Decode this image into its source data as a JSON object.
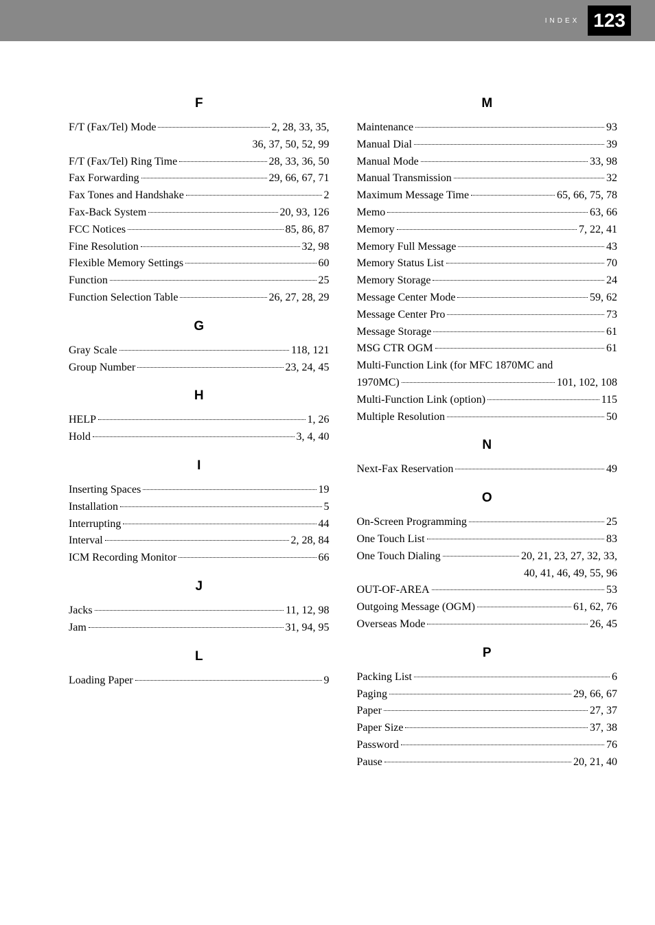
{
  "header": {
    "label": "INDEX",
    "page_number": "123"
  },
  "left_column": [
    {
      "heading": "F",
      "entries": [
        {
          "label": "F/T (Fax/Tel) Mode",
          "pages": "2, 28, 33, 35,",
          "continuation": "36, 37, 50, 52, 99"
        },
        {
          "label": "F/T (Fax/Tel) Ring Time",
          "pages": "28, 33, 36, 50"
        },
        {
          "label": "Fax Forwarding",
          "pages": "29, 66, 67, 71"
        },
        {
          "label": "Fax Tones and Handshake",
          "pages": "2"
        },
        {
          "label": "Fax-Back System",
          "pages": "20, 93, 126"
        },
        {
          "label": "FCC Notices",
          "pages": "85, 86, 87"
        },
        {
          "label": "Fine Resolution",
          "pages": "32, 98"
        },
        {
          "label": "Flexible Memory Settings",
          "pages": "60"
        },
        {
          "label": "Function",
          "pages": "25"
        },
        {
          "label": "Function Selection Table",
          "pages": "26, 27, 28, 29"
        }
      ]
    },
    {
      "heading": "G",
      "entries": [
        {
          "label": "Gray Scale",
          "pages": "118, 121"
        },
        {
          "label": "Group Number",
          "pages": "23, 24, 45"
        }
      ]
    },
    {
      "heading": "H",
      "entries": [
        {
          "label": "HELP",
          "pages": "1, 26"
        },
        {
          "label": "Hold",
          "pages": "3, 4, 40"
        }
      ]
    },
    {
      "heading": "I",
      "entries": [
        {
          "label": "Inserting Spaces",
          "pages": "19"
        },
        {
          "label": "Installation",
          "pages": "5"
        },
        {
          "label": "Interrupting",
          "pages": "44"
        },
        {
          "label": "Interval",
          "pages": "2, 28, 84"
        },
        {
          "label": "ICM Recording Monitor",
          "pages": "66"
        }
      ]
    },
    {
      "heading": "J",
      "entries": [
        {
          "label": "Jacks",
          "pages": "11, 12, 98"
        },
        {
          "label": "Jam",
          "pages": "31, 94, 95"
        }
      ]
    },
    {
      "heading": "L",
      "entries": [
        {
          "label": "Loading Paper",
          "pages": "9"
        }
      ]
    }
  ],
  "right_column": [
    {
      "heading": "M",
      "entries": [
        {
          "label": "Maintenance",
          "pages": "93"
        },
        {
          "label": "Manual Dial",
          "pages": "39"
        },
        {
          "label": "Manual Mode",
          "pages": "33, 98"
        },
        {
          "label": "Manual Transmission",
          "pages": "32"
        },
        {
          "label": "Maximum Message Time",
          "pages": "65, 66, 75, 78"
        },
        {
          "label": "Memo",
          "pages": "63, 66"
        },
        {
          "label": "Memory",
          "pages": "7, 22, 41"
        },
        {
          "label": "Memory Full Message",
          "pages": "43"
        },
        {
          "label": "Memory Status List",
          "pages": "70"
        },
        {
          "label": "Memory Storage",
          "pages": "24"
        },
        {
          "label": "Message Center Mode",
          "pages": "59, 62"
        },
        {
          "label": "Message Center Pro",
          "pages": "73"
        },
        {
          "label": "Message Storage",
          "pages": "61"
        },
        {
          "label": "MSG CTR OGM",
          "pages": "61"
        },
        {
          "label_multiline": true,
          "label": "Multi-Function Link (for MFC 1870MC and",
          "label2": "1970MC)",
          "pages": "101, 102, 108"
        },
        {
          "label": "Multi-Function Link (option)",
          "pages": "115"
        },
        {
          "label": "Multiple Resolution",
          "pages": "50"
        }
      ]
    },
    {
      "heading": "N",
      "entries": [
        {
          "label": "Next-Fax Reservation",
          "pages": "49"
        }
      ]
    },
    {
      "heading": "O",
      "entries": [
        {
          "label": "On-Screen Programming",
          "pages": "25"
        },
        {
          "label": "One Touch List",
          "pages": "83"
        },
        {
          "label": "One Touch Dialing",
          "pages": "20, 21, 23, 27, 32, 33,",
          "continuation": "40, 41, 46, 49, 55, 96"
        },
        {
          "label": "OUT-OF-AREA",
          "pages": "53"
        },
        {
          "label": "Outgoing Message (OGM)",
          "pages": "61, 62, 76"
        },
        {
          "label": "Overseas Mode",
          "pages": "26, 45"
        }
      ]
    },
    {
      "heading": "P",
      "entries": [
        {
          "label": "Packing List",
          "pages": "6"
        },
        {
          "label": "Paging",
          "pages": "29, 66, 67"
        },
        {
          "label": "Paper",
          "pages": "27, 37"
        },
        {
          "label": "Paper Size",
          "pages": "37, 38"
        },
        {
          "label": "Password",
          "pages": "76"
        },
        {
          "label": "Pause",
          "pages": "20, 21, 40"
        }
      ]
    }
  ]
}
